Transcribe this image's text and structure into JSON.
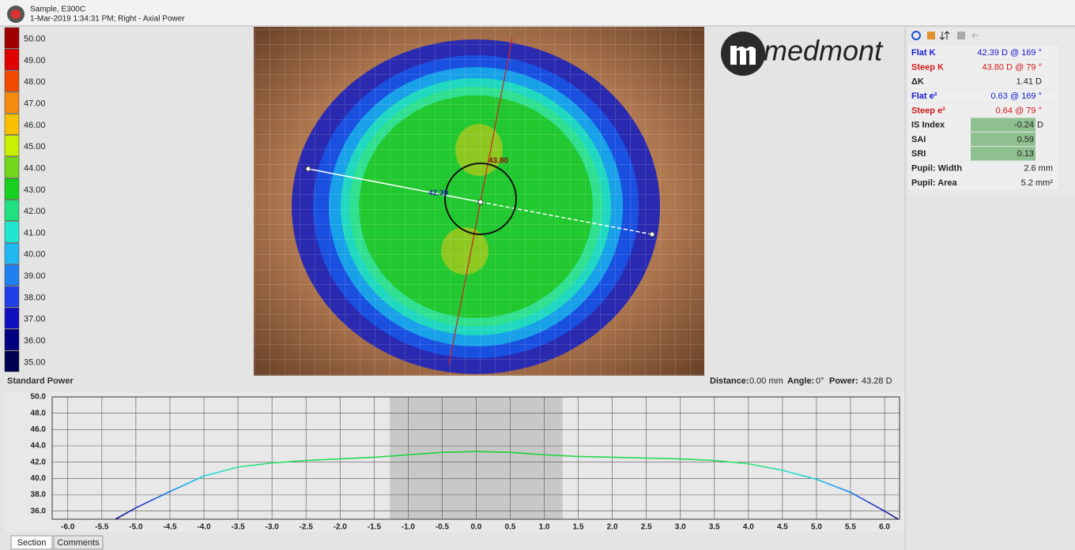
{
  "header": {
    "title": "Sample, E300C",
    "subtitle": "1-Mar-2019 1:34:31 PM; Right - Axial Power"
  },
  "scale": {
    "label": "Standard Power",
    "levels": [
      {
        "label": "50.00",
        "color": "#a00000"
      },
      {
        "label": "49.00",
        "color": "#e00000"
      },
      {
        "label": "48.00",
        "color": "#f04a00"
      },
      {
        "label": "47.00",
        "color": "#f58a10"
      },
      {
        "label": "46.00",
        "color": "#f8c000"
      },
      {
        "label": "45.00",
        "color": "#c8f000"
      },
      {
        "label": "44.00",
        "color": "#70d818"
      },
      {
        "label": "43.00",
        "color": "#18d020"
      },
      {
        "label": "42.00",
        "color": "#20e080"
      },
      {
        "label": "41.00",
        "color": "#20e8d0"
      },
      {
        "label": "40.00",
        "color": "#20b8f0"
      },
      {
        "label": "39.00",
        "color": "#2080f0"
      },
      {
        "label": "38.00",
        "color": "#2040e8"
      },
      {
        "label": "37.00",
        "color": "#1010c0"
      },
      {
        "label": "36.00",
        "color": "#000080"
      },
      {
        "label": "35.00",
        "color": "#000050"
      }
    ]
  },
  "map": {
    "logo": "medmont",
    "labels": [
      "43.80",
      "42.39"
    ]
  },
  "status": [
    {
      "label": "Distance:",
      "value": "0.00 mm"
    },
    {
      "label": "Angle:",
      "value": "0°"
    },
    {
      "label": "Power:",
      "value": "43.28 D"
    }
  ],
  "indices": [
    {
      "label": "Flat K",
      "value": "42.39 D @ 169 °",
      "color": "#1a1ad0"
    },
    {
      "label": "Steep K",
      "value": "43.80 D @  79 °",
      "color": "#d01a1a"
    },
    {
      "label": "ΔK",
      "value": "1.41 D",
      "color": "#222222"
    },
    {
      "label": "Flat e²",
      "value": "0.63 @ 169 °",
      "color": "#1a1ad0"
    },
    {
      "label": "Steep e²",
      "value": "0.64 @  79 °",
      "color": "#d01a1a"
    },
    {
      "label": "IS Index",
      "value": "-0.24",
      "unit": "D",
      "color": "#222222",
      "highlight": true
    },
    {
      "label": "SAI",
      "value": "0.59",
      "color": "#222222",
      "highlight": true
    },
    {
      "label": "SRI",
      "value": "0.13",
      "color": "#222222",
      "highlight": true
    },
    {
      "label": "Pupil: Width",
      "value": "2.6 mm",
      "color": "#222222"
    },
    {
      "label": "Pupil: Area",
      "value": "5.2 mm²",
      "color": "#222222"
    }
  ],
  "section_chart": {
    "type": "line",
    "x": [
      -5.3,
      -5.0,
      -4.5,
      -4.0,
      -3.5,
      -3.0,
      -2.5,
      -2.0,
      -1.5,
      -1.0,
      -0.5,
      0.0,
      0.5,
      1.0,
      1.5,
      2.0,
      2.5,
      3.0,
      3.5,
      4.0,
      4.5,
      5.0,
      5.5,
      6.0,
      6.2
    ],
    "values": [
      35.0,
      36.4,
      38.4,
      40.3,
      41.4,
      41.9,
      42.2,
      42.4,
      42.6,
      42.9,
      43.2,
      43.3,
      43.2,
      42.9,
      42.7,
      42.6,
      42.5,
      42.4,
      42.2,
      41.8,
      41.0,
      39.9,
      38.3,
      36.0,
      35.0
    ],
    "band": [
      -1.27,
      1.27
    ],
    "xlim": [
      -6.23,
      6.22
    ],
    "ylim": [
      35,
      50
    ],
    "xticks": [
      {
        "value": -6,
        "label": "-6.0"
      },
      {
        "value": -5.5,
        "label": "-5.5"
      },
      {
        "value": -5,
        "label": "-5.0"
      },
      {
        "value": -4.5,
        "label": "-4.5"
      },
      {
        "value": -4,
        "label": "-4.0"
      },
      {
        "value": -3.5,
        "label": "-3.5"
      },
      {
        "value": -3,
        "label": "-3.0"
      },
      {
        "value": -2.5,
        "label": "-2.5"
      },
      {
        "value": -2,
        "label": "-2.0"
      },
      {
        "value": -1.5,
        "label": "-1.5"
      },
      {
        "value": -1,
        "label": "-1.0"
      },
      {
        "value": -0.5,
        "label": "-0.5"
      },
      {
        "value": 0,
        "label": "0.0"
      },
      {
        "value": 0.5,
        "label": "0.5"
      },
      {
        "value": 1,
        "label": "1.0"
      },
      {
        "value": 1.5,
        "label": "1.5"
      },
      {
        "value": 2,
        "label": "2.0"
      },
      {
        "value": 2.5,
        "label": "2.5"
      },
      {
        "value": 3,
        "label": "3.0"
      },
      {
        "value": 3.5,
        "label": "3.5"
      },
      {
        "value": 4,
        "label": "4.0"
      },
      {
        "value": 4.5,
        "label": "4.5"
      },
      {
        "value": 5,
        "label": "5.0"
      },
      {
        "value": 5.5,
        "label": "5.5"
      },
      {
        "value": 6,
        "label": "6.0"
      }
    ],
    "yticks": [
      {
        "value": 36,
        "label": "36.0"
      },
      {
        "value": 38,
        "label": "38.0"
      },
      {
        "value": 40,
        "label": "40.0"
      },
      {
        "value": 42,
        "label": "42.0"
      },
      {
        "value": 44,
        "label": "44.0"
      },
      {
        "value": 46,
        "label": "46.0"
      },
      {
        "value": 48,
        "label": "48.0"
      },
      {
        "value": 50,
        "label": "50.0"
      }
    ],
    "grid": true
  },
  "tabs": [
    "Section",
    "Comments"
  ]
}
